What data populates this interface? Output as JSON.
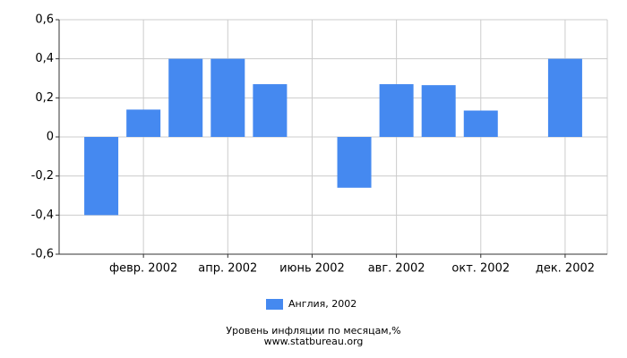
{
  "chart_data": {
    "type": "bar",
    "categories": [
      null,
      "февр. 2002",
      null,
      "апр. 2002",
      null,
      "июнь 2002",
      null,
      "авг. 2002",
      null,
      "окт. 2002",
      null,
      "дек. 2002"
    ],
    "series": [
      {
        "name": "Англия, 2002",
        "color": "#4589f0",
        "values": [
          -0.4,
          0.14,
          0.4,
          0.4,
          0.27,
          0,
          -0.26,
          0.27,
          0.265,
          0.135,
          0,
          0.4
        ]
      }
    ],
    "ylim": [
      -0.6,
      0.6
    ],
    "yticks": [
      {
        "value": -0.6,
        "label": "-0,6"
      },
      {
        "value": -0.4,
        "label": "-0,4"
      },
      {
        "value": -0.2,
        "label": "-0,2"
      },
      0,
      {
        "value": 0.2,
        "label": "0,2"
      },
      {
        "value": 0.4,
        "label": "0,4"
      },
      {
        "value": 0.6,
        "label": "0,6"
      }
    ],
    "grid": true,
    "legend": "bottom",
    "title": "Уровень инфляции по месяцам,%",
    "subtitle": "www.statbureau.org"
  }
}
